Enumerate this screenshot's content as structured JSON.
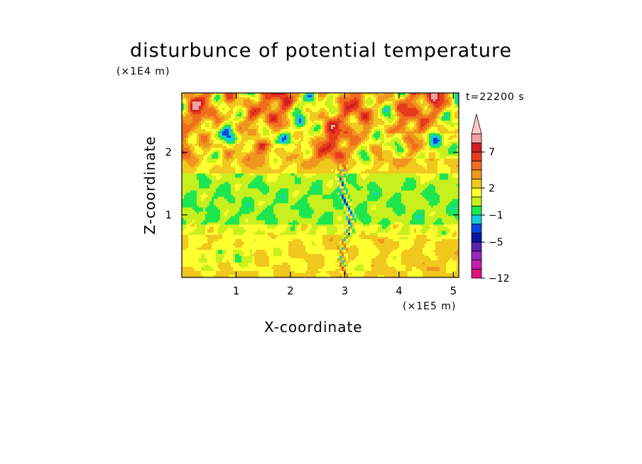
{
  "chart_data": {
    "type": "heatmap",
    "title": "disturbunce of potential temperature",
    "xlabel": "X-coordinate",
    "ylabel": "Z-coordinate",
    "x_unit_label": "(×1E5 m)",
    "y_unit_label": "(×1E4 m)",
    "time_label": "t=22200 s",
    "xlim": [
      0,
      5.1
    ],
    "ylim": [
      0,
      2.95
    ],
    "x_ticks": [
      1,
      2,
      3,
      4,
      5
    ],
    "x_tick_labels": [
      "1",
      "2",
      "3",
      "4",
      "5"
    ],
    "y_ticks": [
      1,
      2
    ],
    "y_tick_labels": [
      "1",
      "2"
    ],
    "colorbar": {
      "colors": [
        "#e0147a",
        "#c81eb4",
        "#9a28c0",
        "#5a23b4",
        "#0a14a0",
        "#0a46dc",
        "#19c8dc",
        "#1ee650",
        "#c8f01e",
        "#ffff32",
        "#f0c81e",
        "#f0961e",
        "#f06e1e",
        "#e63c1e",
        "#d21e1e",
        "#f0a0a0",
        "#ffc8c8"
      ],
      "tick_labels": [
        "-12",
        "-5",
        "-1",
        "2",
        "7"
      ],
      "tick_levels": [
        0,
        4,
        7,
        10,
        14
      ],
      "extend": "max"
    },
    "field_description": "Layered perturbation field: warm (orange/red) and cold (blue) cells alternating in upper layer z>1.7, green near-zero band around z≈1.0-1.4, yellow/orange lower layer with a narrow vertical disturbance column near x≈3"
  }
}
